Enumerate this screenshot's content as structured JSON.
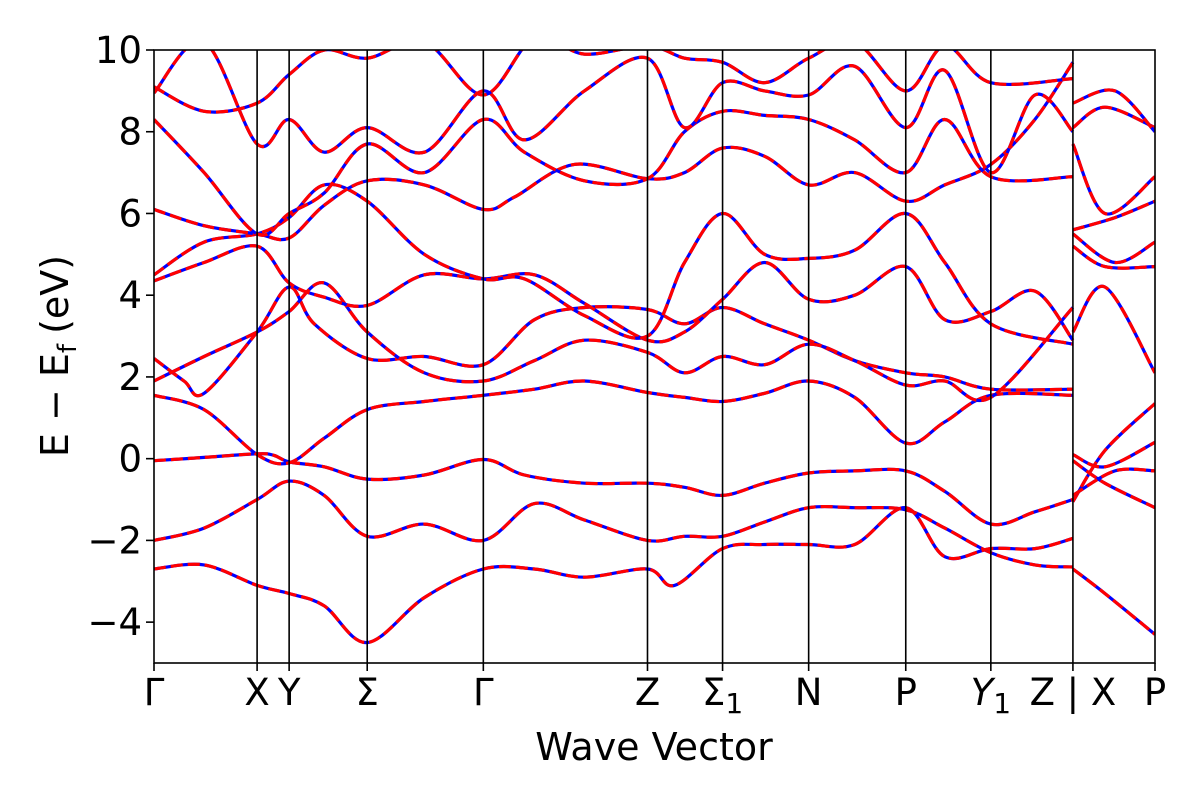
{
  "chart_data": {
    "type": "line",
    "title": "",
    "xlabel": "Wave Vector",
    "ylabel": "E − E",
    "ylabel_subscript": "f",
    "ylabel_unit": "(eV)",
    "ylim": [
      -5,
      10
    ],
    "yticks": [
      {
        "value": -4,
        "label": "−4"
      },
      {
        "value": -2,
        "label": "−2"
      },
      {
        "value": 0,
        "label": "0"
      },
      {
        "value": 2,
        "label": "2"
      },
      {
        "value": 4,
        "label": "4"
      },
      {
        "value": 6,
        "label": "6"
      },
      {
        "value": 8,
        "label": "8"
      },
      {
        "value": 10,
        "label": "10"
      }
    ],
    "xlim": [
      0,
      1
    ],
    "kpoints": [
      {
        "pos": 0.0,
        "label": "Γ"
      },
      {
        "pos": 0.103,
        "label": "X"
      },
      {
        "pos": 0.135,
        "label": "Y"
      },
      {
        "pos": 0.213,
        "label": "Σ"
      },
      {
        "pos": 0.329,
        "label": "Γ"
      },
      {
        "pos": 0.493,
        "label": "Z"
      },
      {
        "pos": 0.568,
        "label": "Σ",
        "subscript": "1"
      },
      {
        "pos": 0.654,
        "label": "N"
      },
      {
        "pos": 0.751,
        "label": "P"
      },
      {
        "pos": 0.836,
        "label": "Y",
        "subscript": "1",
        "italic": true
      },
      {
        "pos": 0.918,
        "label": "Z | X"
      },
      {
        "pos": 1.0,
        "label": "P"
      }
    ],
    "grid": false,
    "legend": "none",
    "series": [
      {
        "color": "#0000ff",
        "style": "solid"
      },
      {
        "color": "#ff0000",
        "style": "dashed"
      }
    ],
    "bands": [
      [
        [
          0,
          -0.05
        ],
        [
          0.05,
          0.03
        ],
        [
          0.103,
          0.12
        ],
        [
          0.12,
          0.08
        ],
        [
          0.135,
          -0.08
        ],
        [
          0.17,
          -0.2
        ],
        [
          0.213,
          -0.5
        ],
        [
          0.27,
          -0.4
        ],
        [
          0.329,
          -0.02
        ],
        [
          0.37,
          -0.4
        ],
        [
          0.43,
          -0.6
        ],
        [
          0.493,
          -0.6
        ],
        [
          0.53,
          -0.7
        ],
        [
          0.568,
          -0.9
        ],
        [
          0.61,
          -0.6
        ],
        [
          0.654,
          -0.35
        ],
        [
          0.7,
          -0.3
        ],
        [
          0.751,
          -0.3
        ],
        [
          0.79,
          -0.8
        ],
        [
          0.836,
          -1.6
        ],
        [
          0.88,
          -1.3
        ],
        [
          0.918,
          -1.0
        ]
      ],
      [
        [
          0,
          1.55
        ],
        [
          0.05,
          1.2
        ],
        [
          0.103,
          0.1
        ],
        [
          0.135,
          -0.1
        ],
        [
          0.17,
          0.5
        ],
        [
          0.213,
          1.2
        ],
        [
          0.27,
          1.4
        ],
        [
          0.329,
          1.55
        ],
        [
          0.38,
          1.7
        ],
        [
          0.43,
          1.9
        ],
        [
          0.493,
          1.62
        ],
        [
          0.53,
          1.5
        ],
        [
          0.568,
          1.4
        ],
        [
          0.61,
          1.6
        ],
        [
          0.654,
          1.9
        ],
        [
          0.7,
          1.5
        ],
        [
          0.751,
          0.38
        ],
        [
          0.79,
          0.9
        ],
        [
          0.836,
          1.55
        ],
        [
          0.918,
          1.55
        ]
      ],
      [
        [
          0,
          -2.0
        ],
        [
          0.05,
          -1.7
        ],
        [
          0.103,
          -1.0
        ],
        [
          0.135,
          -0.55
        ],
        [
          0.17,
          -0.9
        ],
        [
          0.213,
          -1.9
        ],
        [
          0.27,
          -1.6
        ],
        [
          0.329,
          -2.0
        ],
        [
          0.38,
          -1.1
        ],
        [
          0.43,
          -1.5
        ],
        [
          0.493,
          -2.0
        ],
        [
          0.53,
          -1.9
        ],
        [
          0.568,
          -1.9
        ],
        [
          0.61,
          -1.55
        ],
        [
          0.654,
          -1.2
        ],
        [
          0.7,
          -1.2
        ],
        [
          0.751,
          -1.25
        ],
        [
          0.79,
          -1.7
        ],
        [
          0.836,
          -2.3
        ],
        [
          0.88,
          -2.6
        ],
        [
          0.918,
          -2.65
        ]
      ],
      [
        [
          0,
          -2.7
        ],
        [
          0.05,
          -2.6
        ],
        [
          0.103,
          -3.1
        ],
        [
          0.135,
          -3.3
        ],
        [
          0.17,
          -3.6
        ],
        [
          0.213,
          -4.5
        ],
        [
          0.27,
          -3.4
        ],
        [
          0.329,
          -2.7
        ],
        [
          0.38,
          -2.7
        ],
        [
          0.43,
          -2.9
        ],
        [
          0.493,
          -2.7
        ],
        [
          0.52,
          -3.1
        ],
        [
          0.568,
          -2.2
        ],
        [
          0.61,
          -2.1
        ],
        [
          0.654,
          -2.1
        ],
        [
          0.7,
          -2.1
        ],
        [
          0.751,
          -1.2
        ],
        [
          0.79,
          -2.4
        ],
        [
          0.836,
          -2.2
        ],
        [
          0.88,
          -2.2
        ],
        [
          0.918,
          -1.95
        ]
      ],
      [
        [
          0,
          2.45
        ],
        [
          0.03,
          1.9
        ],
        [
          0.05,
          1.6
        ],
        [
          0.103,
          3.1
        ],
        [
          0.135,
          4.2
        ],
        [
          0.16,
          3.3
        ],
        [
          0.213,
          2.45
        ],
        [
          0.27,
          2.5
        ],
        [
          0.329,
          2.3
        ],
        [
          0.38,
          3.4
        ],
        [
          0.43,
          3.7
        ],
        [
          0.493,
          3.65
        ],
        [
          0.53,
          3.3
        ],
        [
          0.568,
          3.7
        ],
        [
          0.61,
          3.3
        ],
        [
          0.654,
          2.9
        ],
        [
          0.7,
          2.4
        ],
        [
          0.751,
          2.1
        ],
        [
          0.79,
          2.0
        ],
        [
          0.836,
          1.7
        ],
        [
          0.918,
          1.7
        ]
      ],
      [
        [
          0,
          1.9
        ],
        [
          0.05,
          2.5
        ],
        [
          0.103,
          3.1
        ],
        [
          0.135,
          3.6
        ],
        [
          0.17,
          4.3
        ],
        [
          0.213,
          3.1
        ],
        [
          0.27,
          2.1
        ],
        [
          0.329,
          1.9
        ],
        [
          0.38,
          2.4
        ],
        [
          0.43,
          2.9
        ],
        [
          0.493,
          2.6
        ],
        [
          0.53,
          2.1
        ],
        [
          0.568,
          2.5
        ],
        [
          0.61,
          2.3
        ],
        [
          0.654,
          2.8
        ],
        [
          0.7,
          2.4
        ],
        [
          0.751,
          1.8
        ],
        [
          0.79,
          1.9
        ],
        [
          0.836,
          1.5
        ],
        [
          0.918,
          3.7
        ]
      ],
      [
        [
          0,
          4.35
        ],
        [
          0.05,
          4.8
        ],
        [
          0.103,
          5.2
        ],
        [
          0.135,
          4.3
        ],
        [
          0.17,
          3.95
        ],
        [
          0.213,
          3.75
        ],
        [
          0.27,
          4.5
        ],
        [
          0.329,
          4.4
        ],
        [
          0.38,
          4.5
        ],
        [
          0.43,
          3.8
        ],
        [
          0.493,
          2.9
        ],
        [
          0.53,
          3.1
        ],
        [
          0.568,
          3.9
        ],
        [
          0.61,
          4.8
        ],
        [
          0.654,
          3.9
        ],
        [
          0.7,
          4.0
        ],
        [
          0.751,
          4.7
        ],
        [
          0.79,
          3.4
        ],
        [
          0.836,
          3.6
        ],
        [
          0.88,
          4.1
        ],
        [
          0.918,
          2.9
        ]
      ],
      [
        [
          0,
          4.5
        ],
        [
          0.05,
          5.3
        ],
        [
          0.103,
          5.5
        ],
        [
          0.135,
          5.9
        ],
        [
          0.17,
          6.7
        ],
        [
          0.213,
          6.3
        ],
        [
          0.27,
          5.0
        ],
        [
          0.329,
          4.4
        ],
        [
          0.37,
          4.4
        ],
        [
          0.43,
          3.5
        ],
        [
          0.493,
          3.0
        ],
        [
          0.53,
          4.8
        ],
        [
          0.568,
          6.0
        ],
        [
          0.61,
          5.0
        ],
        [
          0.654,
          4.9
        ],
        [
          0.7,
          5.1
        ],
        [
          0.751,
          6.0
        ],
        [
          0.79,
          4.8
        ],
        [
          0.836,
          3.3
        ],
        [
          0.918,
          2.8
        ]
      ],
      [
        [
          0,
          6.1
        ],
        [
          0.05,
          5.7
        ],
        [
          0.103,
          5.5
        ],
        [
          0.135,
          5.4
        ],
        [
          0.17,
          6.2
        ],
        [
          0.213,
          6.8
        ],
        [
          0.27,
          6.7
        ],
        [
          0.329,
          6.1
        ],
        [
          0.36,
          6.4
        ],
        [
          0.42,
          7.2
        ],
        [
          0.493,
          6.85
        ],
        [
          0.53,
          7.0
        ],
        [
          0.568,
          7.6
        ],
        [
          0.61,
          7.4
        ],
        [
          0.654,
          6.7
        ],
        [
          0.7,
          7.0
        ],
        [
          0.751,
          6.3
        ],
        [
          0.79,
          6.7
        ],
        [
          0.836,
          7.2
        ],
        [
          0.88,
          8.3
        ],
        [
          0.918,
          9.7
        ]
      ],
      [
        [
          0,
          8.3
        ],
        [
          0.05,
          7.0
        ],
        [
          0.103,
          5.5
        ],
        [
          0.135,
          6.0
        ],
        [
          0.17,
          6.5
        ],
        [
          0.213,
          7.7
        ],
        [
          0.27,
          7.0
        ],
        [
          0.329,
          8.3
        ],
        [
          0.37,
          7.5
        ],
        [
          0.43,
          6.8
        ],
        [
          0.493,
          6.85
        ],
        [
          0.53,
          8.0
        ],
        [
          0.568,
          8.5
        ],
        [
          0.61,
          8.4
        ],
        [
          0.654,
          8.3
        ],
        [
          0.7,
          7.8
        ],
        [
          0.751,
          7.0
        ],
        [
          0.79,
          8.3
        ],
        [
          0.836,
          6.9
        ],
        [
          0.918,
          6.9
        ]
      ],
      [
        [
          0,
          8.95
        ],
        [
          0.05,
          10.2
        ],
        [
          0.103,
          7.7
        ],
        [
          0.135,
          8.3
        ],
        [
          0.17,
          7.5
        ],
        [
          0.213,
          8.1
        ],
        [
          0.27,
          7.5
        ],
        [
          0.329,
          9.0
        ],
        [
          0.37,
          7.8
        ],
        [
          0.43,
          9.0
        ],
        [
          0.493,
          9.8
        ],
        [
          0.53,
          8.1
        ],
        [
          0.568,
          9.2
        ],
        [
          0.61,
          9.0
        ],
        [
          0.654,
          8.9
        ],
        [
          0.7,
          9.6
        ],
        [
          0.751,
          8.1
        ],
        [
          0.79,
          9.5
        ],
        [
          0.836,
          7.0
        ],
        [
          0.88,
          8.9
        ],
        [
          0.918,
          8.0
        ]
      ],
      [
        [
          0,
          9.1
        ],
        [
          0.05,
          8.5
        ],
        [
          0.103,
          8.7
        ],
        [
          0.135,
          9.4
        ],
        [
          0.17,
          10.0
        ],
        [
          0.213,
          9.8
        ],
        [
          0.27,
          10.2
        ],
        [
          0.329,
          8.9
        ],
        [
          0.38,
          10.3
        ],
        [
          0.43,
          9.9
        ],
        [
          0.493,
          10.1
        ],
        [
          0.53,
          9.8
        ],
        [
          0.568,
          9.7
        ],
        [
          0.61,
          9.2
        ],
        [
          0.654,
          9.8
        ],
        [
          0.7,
          10.2
        ],
        [
          0.751,
          9.0
        ],
        [
          0.79,
          10.1
        ],
        [
          0.836,
          9.2
        ],
        [
          0.918,
          9.3
        ]
      ],
      [
        [
          0.918,
          -1.05
        ],
        [
          0.95,
          0.2
        ],
        [
          1.0,
          1.35
        ]
      ],
      [
        [
          0.918,
          -0.05
        ],
        [
          0.95,
          -0.6
        ],
        [
          1.0,
          -1.2
        ]
      ],
      [
        [
          0.918,
          0.1
        ],
        [
          0.95,
          -0.2
        ],
        [
          1.0,
          0.4
        ]
      ],
      [
        [
          0.918,
          -0.9
        ],
        [
          0.96,
          -0.3
        ],
        [
          1.0,
          -0.3
        ]
      ],
      [
        [
          0.918,
          -2.7
        ],
        [
          0.95,
          -3.3
        ],
        [
          1.0,
          -4.3
        ]
      ],
      [
        [
          0.918,
          3.1
        ],
        [
          0.95,
          4.2
        ],
        [
          1.0,
          2.1
        ]
      ],
      [
        [
          0.918,
          5.2
        ],
        [
          0.95,
          4.7
        ],
        [
          1.0,
          4.7
        ]
      ],
      [
        [
          0.918,
          5.5
        ],
        [
          0.96,
          4.8
        ],
        [
          1.0,
          5.3
        ]
      ],
      [
        [
          0.918,
          5.6
        ],
        [
          0.96,
          5.9
        ],
        [
          1.0,
          6.3
        ]
      ],
      [
        [
          0.918,
          7.7
        ],
        [
          0.95,
          6.0
        ],
        [
          1.0,
          6.9
        ]
      ],
      [
        [
          0.918,
          8.1
        ],
        [
          0.95,
          8.6
        ],
        [
          1.0,
          8.1
        ]
      ],
      [
        [
          0.918,
          8.7
        ],
        [
          0.96,
          9.0
        ],
        [
          1.0,
          8.0
        ]
      ]
    ]
  }
}
